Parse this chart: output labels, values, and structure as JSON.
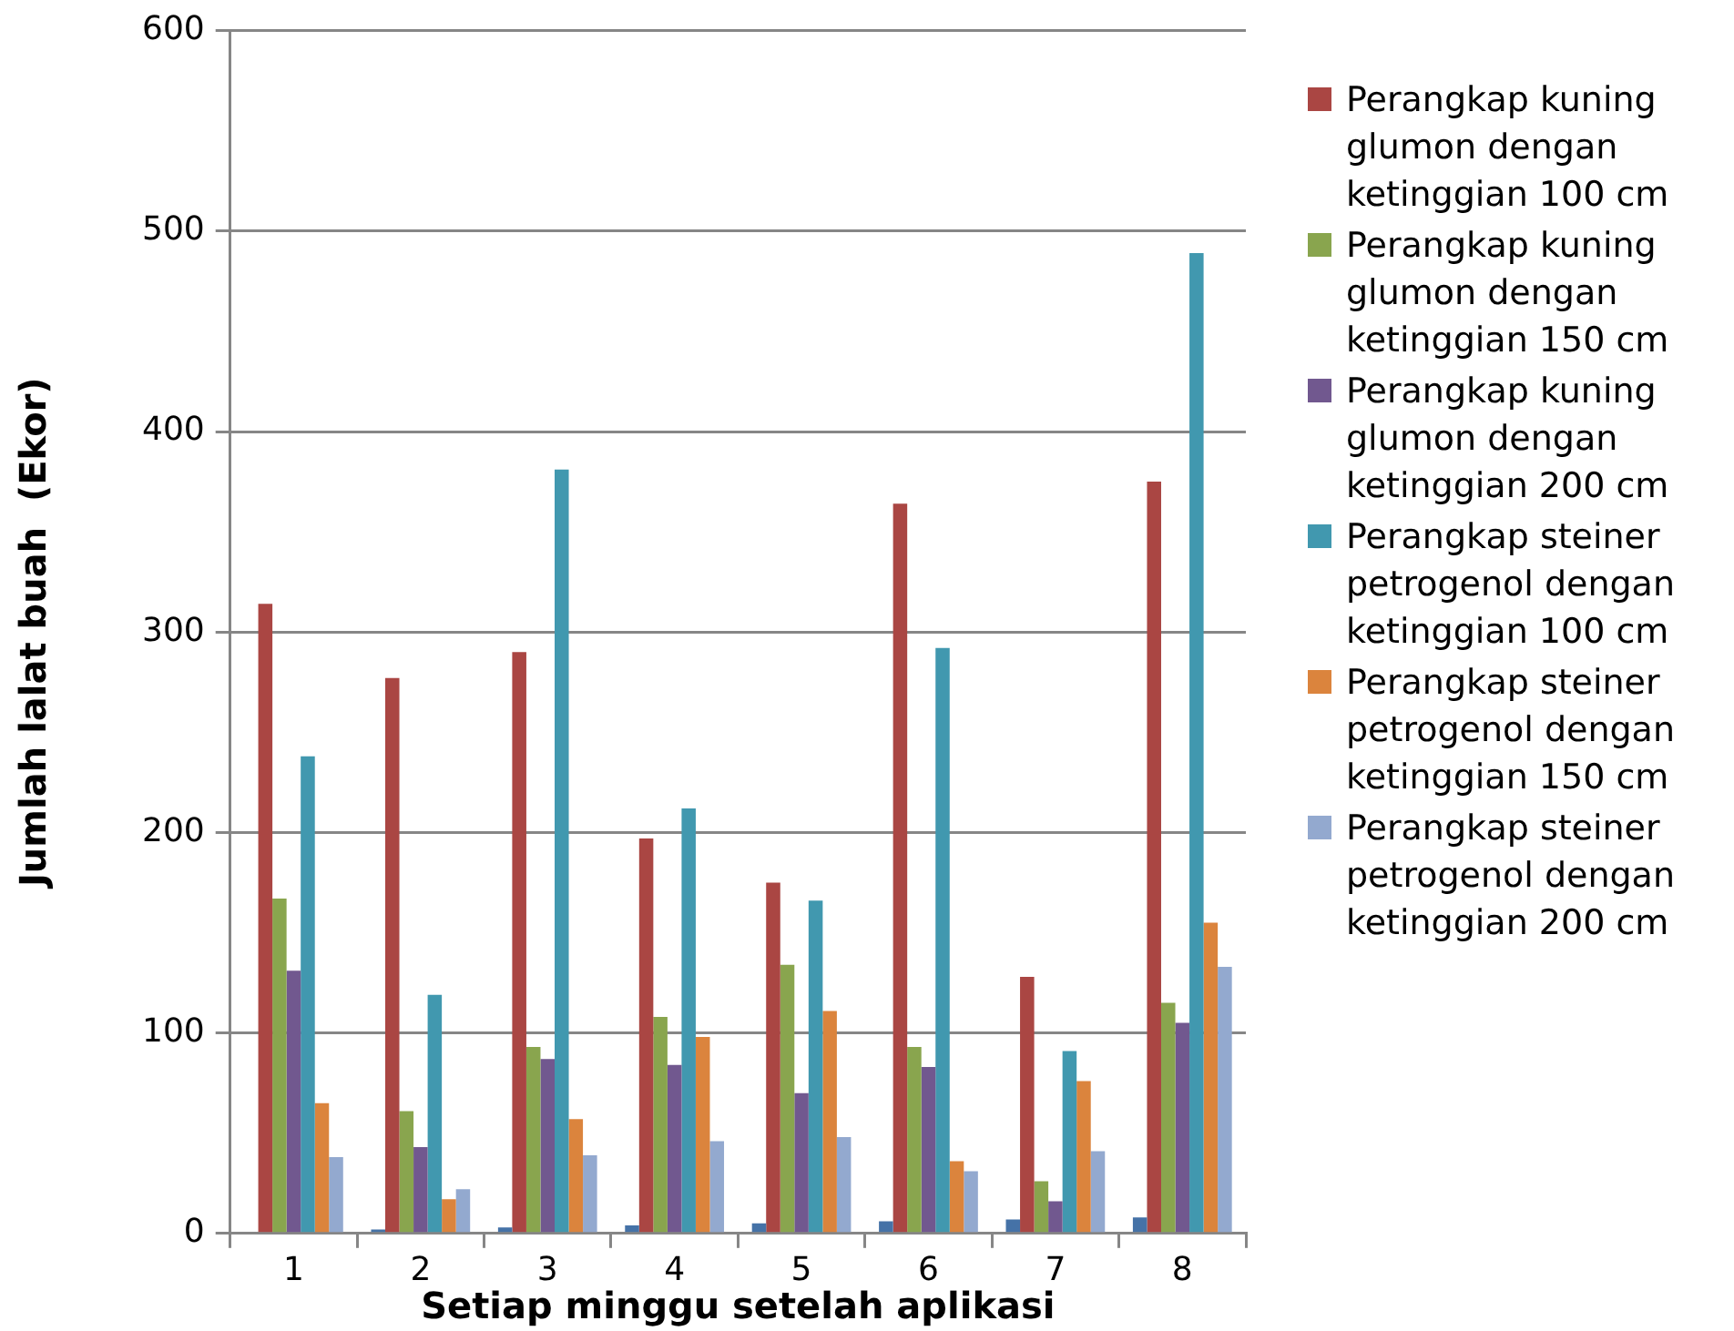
{
  "chart_data": {
    "type": "bar",
    "xlabel": "Setiap minggu setelah aplikasi",
    "ylabel": "Jumlah lalat buah  (Ekor)",
    "categories": [
      "1",
      "2",
      "3",
      "4",
      "5",
      "6",
      "7",
      "8"
    ],
    "series": [
      {
        "color": "#4572a7",
        "values": [
          null,
          2,
          3,
          4,
          5,
          6,
          7,
          8
        ]
      },
      {
        "name": "Perangkap kuning glumon dengan ketinggian 100 cm",
        "color": "#aa4643",
        "values": [
          314,
          277,
          290,
          197,
          175,
          364,
          128,
          375
        ]
      },
      {
        "name": "Perangkap kuning glumon dengan ketinggian 150 cm",
        "color": "#89a54e",
        "values": [
          167,
          61,
          93,
          108,
          134,
          93,
          26,
          115
        ]
      },
      {
        "name": "Perangkap kuning glumon dengan ketinggian 200 cm",
        "color": "#71588f",
        "values": [
          131,
          43,
          87,
          84,
          70,
          83,
          16,
          105
        ]
      },
      {
        "name": "Perangkap steiner petrogenol dengan ketinggian 100 cm",
        "color": "#4198af",
        "values": [
          238,
          119,
          381,
          212,
          166,
          292,
          91,
          489
        ]
      },
      {
        "name": "Perangkap steiner petrogenol dengan ketinggian 150 cm",
        "color": "#db843d",
        "values": [
          65,
          17,
          57,
          98,
          111,
          36,
          76,
          155
        ]
      },
      {
        "name": "Perangkap steiner petrogenol dengan ketinggian 200 cm",
        "color": "#93a9cf",
        "values": [
          38,
          22,
          39,
          46,
          48,
          31,
          41,
          133
        ]
      }
    ],
    "ylim": [
      0,
      600
    ],
    "yticks": [
      0,
      100,
      200,
      300,
      400,
      500,
      600
    ],
    "grid": "y",
    "legend": "right"
  }
}
